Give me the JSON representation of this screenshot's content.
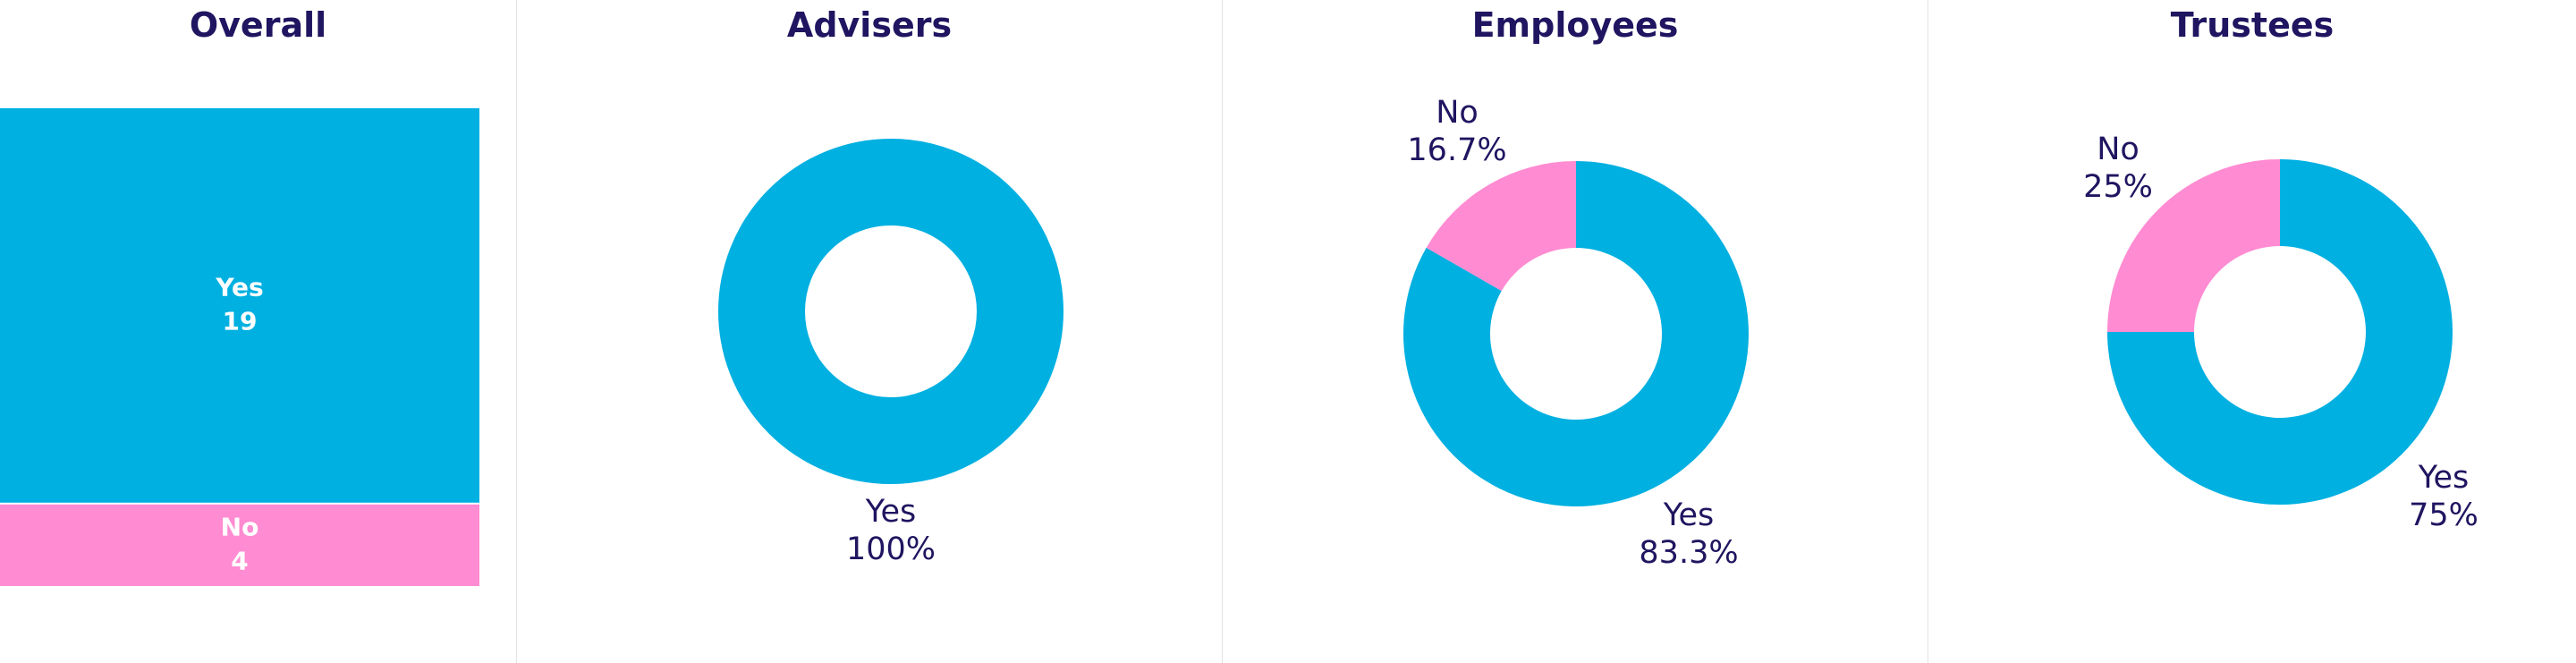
{
  "colors": {
    "yes": "#00b0e1",
    "no": "#ff8bd2",
    "title": "#1f1560"
  },
  "chart_data": [
    {
      "type": "treemap",
      "title": "Overall",
      "categories": [
        "Yes",
        "No"
      ],
      "values": [
        19,
        4
      ]
    },
    {
      "type": "donut",
      "title": "Advisers",
      "categories": [
        "Yes"
      ],
      "values": [
        100
      ],
      "labels": [
        "100%"
      ]
    },
    {
      "type": "donut",
      "title": "Employees",
      "categories": [
        "Yes",
        "No"
      ],
      "values": [
        83.3,
        16.7
      ],
      "labels": [
        "83.3%",
        "16.7%"
      ]
    },
    {
      "type": "donut",
      "title": "Trustees",
      "categories": [
        "Yes",
        "No"
      ],
      "values": [
        75,
        25
      ],
      "labels": [
        "75%",
        "25%"
      ]
    }
  ]
}
